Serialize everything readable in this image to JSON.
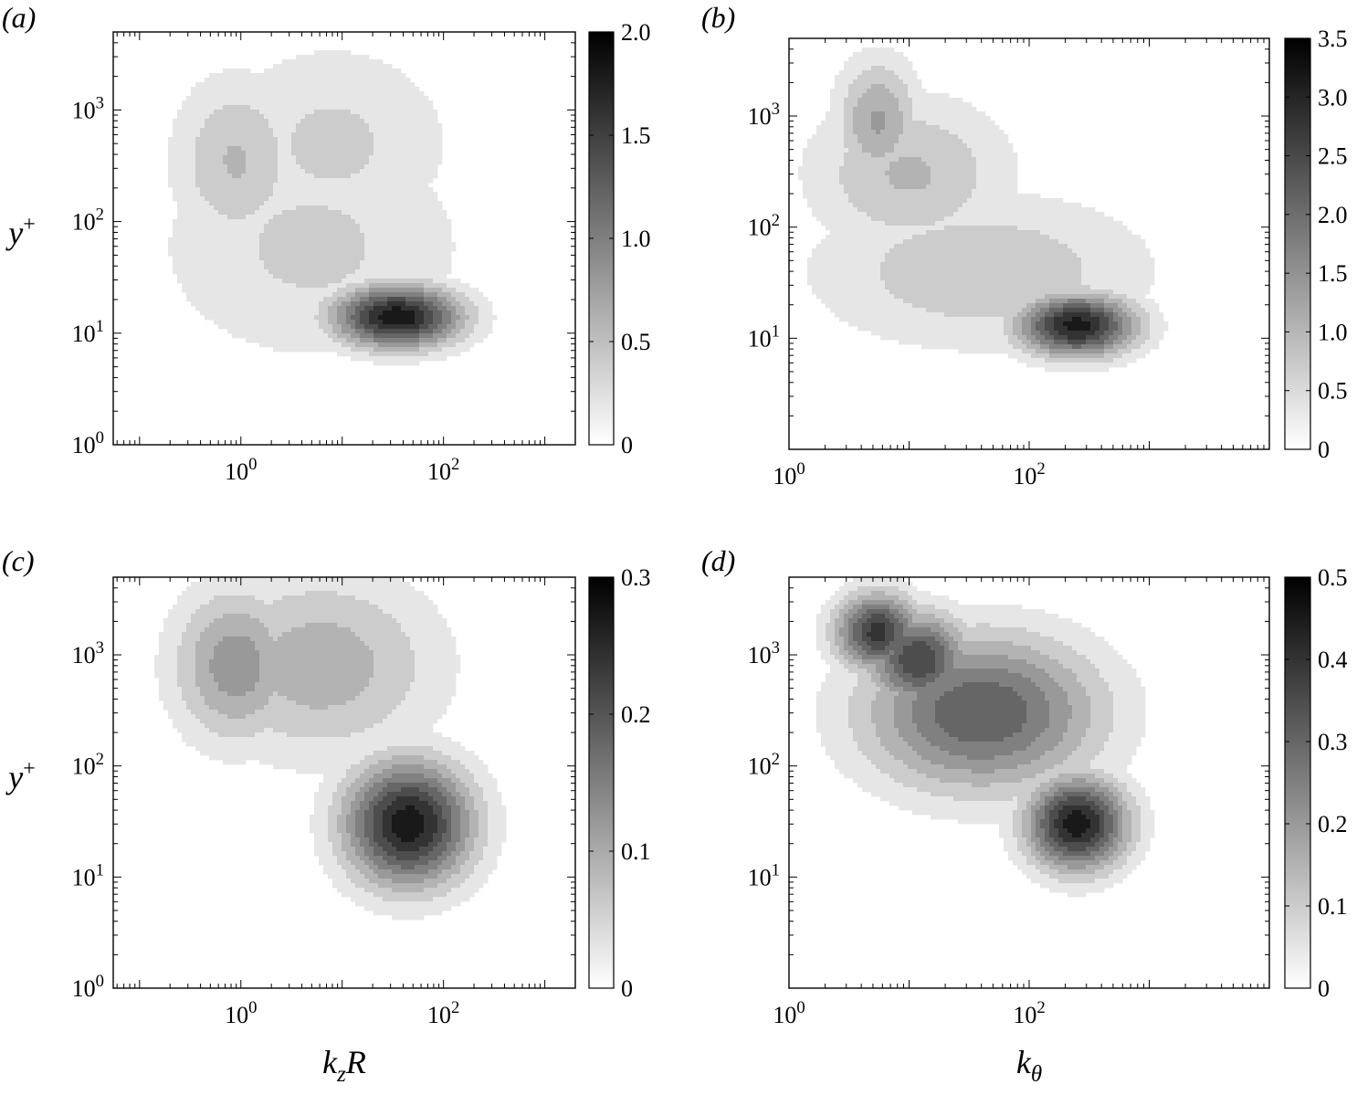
{
  "figure": {
    "panel_labels": [
      "(a)",
      "(b)",
      "(c)",
      "(d)"
    ]
  },
  "chart_data": [
    {
      "panel": "(a)",
      "type": "contour",
      "xscale": "log",
      "yscale": "log",
      "xlabel": "",
      "ylabel": "y+",
      "xlim": [
        0.055,
        2000
      ],
      "ylim": [
        1,
        5000
      ],
      "xticks": [
        "10^0",
        "10^2"
      ],
      "yticks": [
        "10^0",
        "10^1",
        "10^2",
        "10^3"
      ],
      "colorbar": {
        "min": 0,
        "max": 2.0,
        "ticks": [
          "0",
          "0.5",
          "1.0",
          "1.5",
          "2.0"
        ]
      },
      "cmap": "white-to-black",
      "levels": [
        0.2,
        0.4,
        0.6,
        0.8,
        1.0,
        1.2,
        1.4,
        1.6,
        1.8
      ],
      "peaks": [
        {
          "x": 35,
          "y": 14,
          "value": 1.95,
          "sx": 0.45,
          "sy": 0.2
        },
        {
          "x": 0.9,
          "y": 350,
          "value": 0.62,
          "sx": 0.45,
          "sy": 0.55
        },
        {
          "x": 8,
          "y": 500,
          "value": 0.45,
          "sx": 0.85,
          "sy": 0.65
        },
        {
          "x": 5,
          "y": 60,
          "value": 0.45,
          "sx": 1.1,
          "sy": 0.75
        }
      ]
    },
    {
      "panel": "(b)",
      "type": "contour",
      "xscale": "log",
      "yscale": "log",
      "xlabel": "",
      "ylabel": "",
      "xlim": [
        1,
        10000
      ],
      "ylim": [
        1,
        5000
      ],
      "xticks": [
        "10^0",
        "10^2"
      ],
      "yticks": [
        "10^1",
        "10^2",
        "10^3"
      ],
      "colorbar": {
        "min": 0,
        "max": 3.5,
        "ticks": [
          "0",
          "0.5",
          "1.0",
          "1.5",
          "2.0",
          "2.5",
          "3.0",
          "3.5"
        ]
      },
      "cmap": "white-to-black",
      "levels": [
        0.35,
        0.7,
        1.05,
        1.4,
        1.75,
        2.1,
        2.45,
        2.8,
        3.15
      ],
      "peaks": [
        {
          "x": 250,
          "y": 13,
          "value": 3.3,
          "sx": 0.35,
          "sy": 0.2
        },
        {
          "x": 5.5,
          "y": 900,
          "value": 1.45,
          "sx": 0.25,
          "sy": 0.4
        },
        {
          "x": 10,
          "y": 300,
          "value": 1.1,
          "sx": 0.6,
          "sy": 0.5
        },
        {
          "x": 40,
          "y": 40,
          "value": 1.0,
          "sx": 1.0,
          "sy": 0.5
        }
      ]
    },
    {
      "panel": "(c)",
      "type": "contour",
      "xscale": "log",
      "yscale": "log",
      "xlabel": "kzR",
      "ylabel": "y+",
      "xlim": [
        0.055,
        2000
      ],
      "ylim": [
        1,
        5000
      ],
      "xticks": [
        "10^0",
        "10^2"
      ],
      "yticks": [
        "10^0",
        "10^1",
        "10^2",
        "10^3"
      ],
      "colorbar": {
        "min": 0,
        "max": 0.3,
        "ticks": [
          "0",
          "0.1",
          "0.2",
          "0.3"
        ]
      },
      "cmap": "white-to-black",
      "levels": [
        0.03,
        0.06,
        0.09,
        0.12,
        0.15,
        0.18,
        0.21,
        0.24,
        0.27
      ],
      "peaks": [
        {
          "x": 45,
          "y": 30,
          "value": 0.29,
          "sx": 0.45,
          "sy": 0.4
        },
        {
          "x": 0.9,
          "y": 800,
          "value": 0.14,
          "sx": 0.45,
          "sy": 0.5
        },
        {
          "x": 6,
          "y": 800,
          "value": 0.11,
          "sx": 0.85,
          "sy": 0.6
        }
      ]
    },
    {
      "panel": "(d)",
      "type": "contour",
      "xscale": "log",
      "yscale": "log",
      "xlabel": "kθ",
      "ylabel": "",
      "xlim": [
        1,
        10000
      ],
      "ylim": [
        1,
        5000
      ],
      "xticks": [
        "10^0",
        "10^2"
      ],
      "yticks": [
        "10^1",
        "10^2",
        "10^3"
      ],
      "colorbar": {
        "min": 0,
        "max": 0.5,
        "ticks": [
          "0",
          "0.1",
          "0.2",
          "0.3",
          "0.4",
          "0.5"
        ]
      },
      "cmap": "white-to-black",
      "levels": [
        0.05,
        0.1,
        0.15,
        0.2,
        0.25,
        0.3,
        0.35,
        0.4,
        0.45
      ],
      "peaks": [
        {
          "x": 250,
          "y": 30,
          "value": 0.48,
          "sx": 0.3,
          "sy": 0.3
        },
        {
          "x": 5.5,
          "y": 1600,
          "value": 0.42,
          "sx": 0.25,
          "sy": 0.25
        },
        {
          "x": 12,
          "y": 900,
          "value": 0.4,
          "sx": 0.3,
          "sy": 0.3
        },
        {
          "x": 40,
          "y": 300,
          "value": 0.35,
          "sx": 0.7,
          "sy": 0.5
        }
      ]
    }
  ]
}
